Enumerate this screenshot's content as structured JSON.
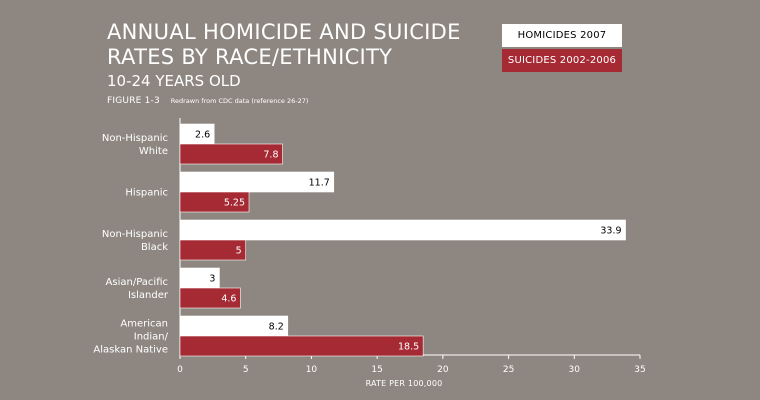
{
  "chart_data": {
    "type": "bar",
    "orientation": "horizontal",
    "title": "ANNUAL HOMICIDE AND SUICIDE RATES BY RACE/ETHNICITY",
    "subtitle": "10-24 YEARS OLD",
    "figure_label": "FIGURE 1-3",
    "source_note": "Redrawn from CDC data (reference 26-27)",
    "xlabel": "RATE PER 100,000",
    "ylabel": "",
    "xlim": [
      0,
      35
    ],
    "x_ticks": [
      0,
      5,
      10,
      15,
      20,
      25,
      30,
      35
    ],
    "x_tick_labels": [
      "0",
      "5",
      "10",
      "15",
      "20",
      "25",
      "30",
      "35"
    ],
    "categories": [
      [
        "Non-Hispanic",
        "White"
      ],
      [
        "Hispanic"
      ],
      [
        "Non-Hispanic",
        "Black"
      ],
      [
        "Asian/Pacific",
        "Islander"
      ],
      [
        "American",
        "Indian/",
        "Alaskan Native"
      ]
    ],
    "series": [
      {
        "name": "HOMICIDES 2007",
        "color": "#ffffff",
        "label_color": "#000000",
        "values": [
          2.6,
          11.7,
          33.9,
          3,
          8.2
        ],
        "value_labels": [
          "2.6",
          "11.7",
          "33.9",
          "3",
          "8.2"
        ]
      },
      {
        "name": "SUICIDES 2002-2006",
        "color": "#a52a34",
        "label_color": "#ffffff",
        "values": [
          7.8,
          5.25,
          5,
          4.6,
          18.5
        ],
        "value_labels": [
          "7.8",
          "5.25",
          "5",
          "4.6",
          "18.5"
        ]
      }
    ],
    "legend_position": "top-right",
    "grid": false
  }
}
